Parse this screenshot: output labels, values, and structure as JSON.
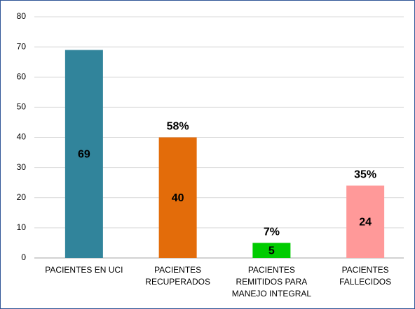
{
  "chart_data": {
    "type": "bar",
    "categories": [
      "PACIENTES EN UCI",
      "PACIENTES RECUPERADOS",
      "PACIENTES REMITIDOS PARA MANEJO INTEGRAL",
      "PACIENTES FALLECIDOS"
    ],
    "values": [
      69,
      40,
      5,
      24
    ],
    "colors": [
      "#31849b",
      "#e36c0a",
      "#00cc00",
      "#ff9999"
    ],
    "annotations": [
      null,
      "58%",
      "7%",
      "35%"
    ],
    "ylim": [
      0,
      80
    ],
    "yticks": [
      0,
      10,
      20,
      30,
      40,
      50,
      60,
      70,
      80
    ],
    "grid": true
  }
}
